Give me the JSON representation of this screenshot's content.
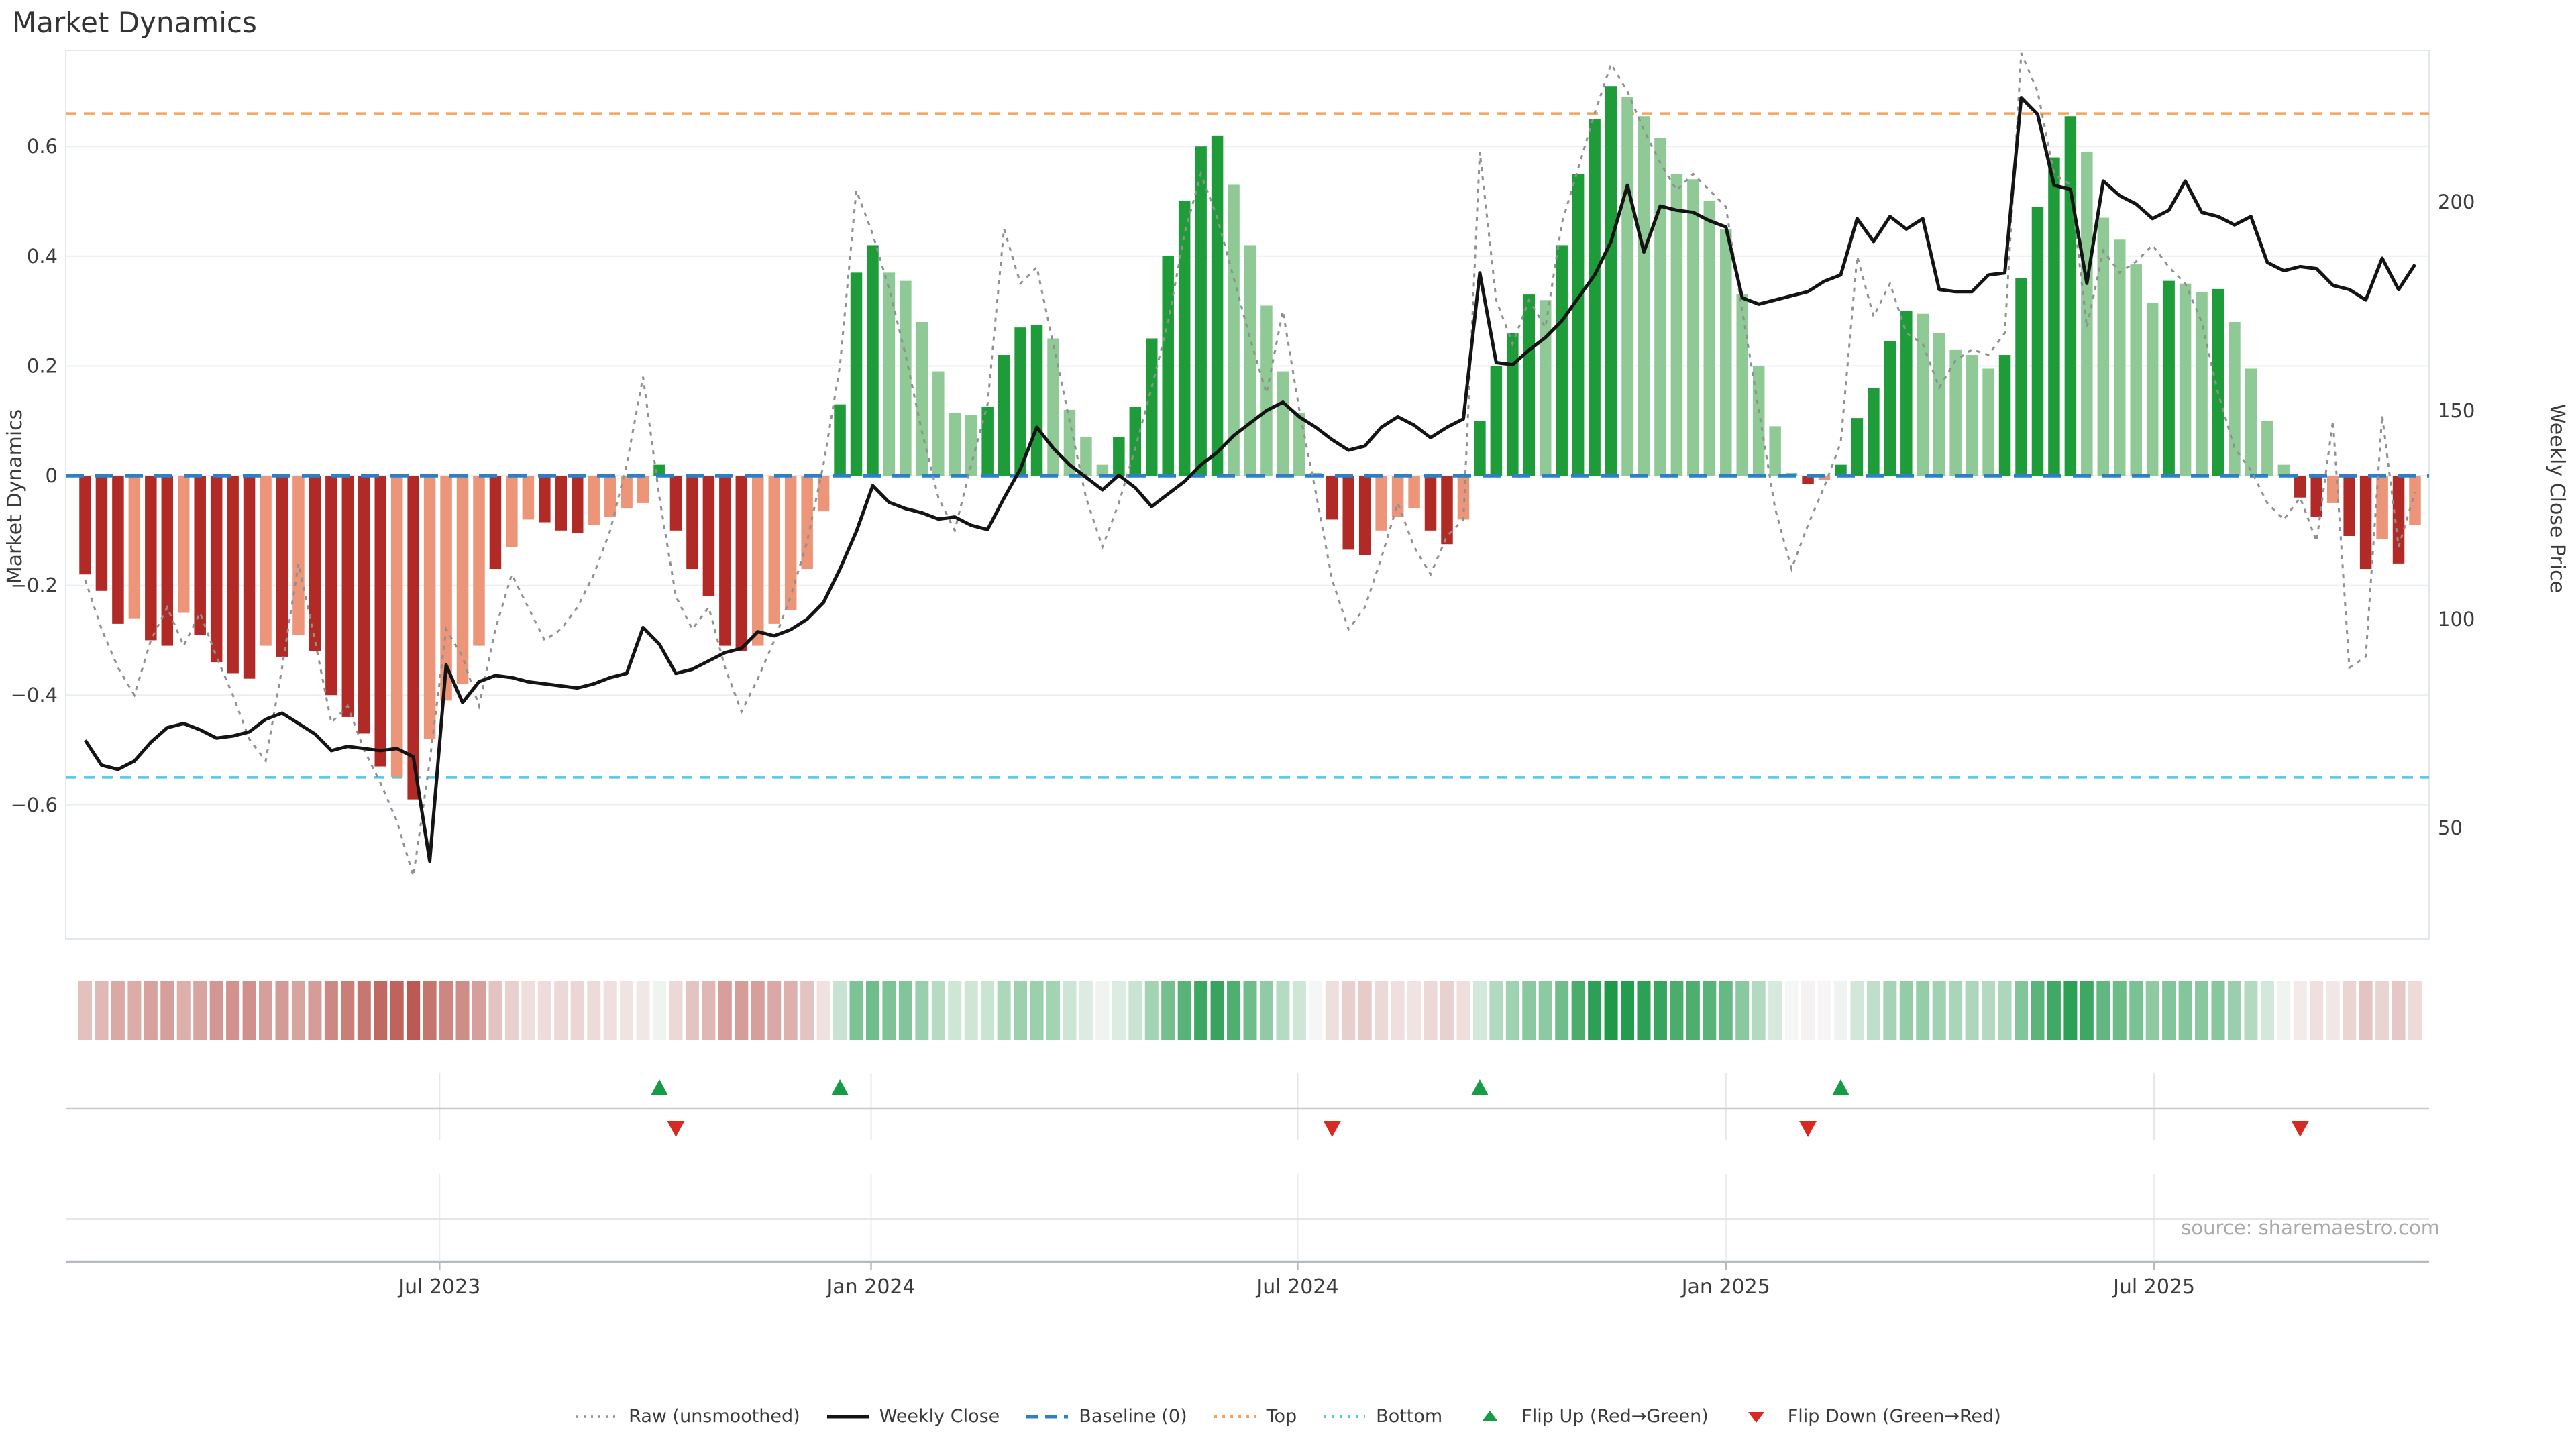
{
  "title": "Market Dynamics",
  "left_axis": {
    "label": "Market Dynamics",
    "ticks": [
      0.6,
      0.4,
      0.2,
      0,
      -0.2,
      -0.4,
      -0.6
    ]
  },
  "right_axis": {
    "label": "Weekly Close Price",
    "ticks": [
      200,
      150,
      100,
      50
    ]
  },
  "x_axis": {
    "tick_labels": [
      "Jul 2023",
      "Jan 2024",
      "Jul 2024",
      "Jan 2025",
      "Jul 2025"
    ],
    "tick_week_index": [
      21.6,
      47.9,
      73.9,
      100.0,
      126.1
    ]
  },
  "source": "source: sharemaestro.com",
  "colors": {
    "bar_pos_strong": "#1f9c3a",
    "bar_pos_weak": "#8fca96",
    "bar_neg_strong": "#b22a26",
    "bar_neg_weak": "#ec9579",
    "close": "#141414",
    "raw": "#909090",
    "baseline": "#2e80c6",
    "top": "#f2a45f",
    "bottom": "#54c6e8",
    "grid": "#e9eff5",
    "panel_grid": "#e6e6e6",
    "panel_mid": "#c9c9c9",
    "panel_mid2": "#e2e2e2",
    "axis_line": "#b5bac0",
    "flip_up": "#169b47",
    "flip_down": "#d62a22",
    "heat_pos": [
      26,
      152,
      70
    ],
    "heat_neg": [
      176,
      58,
      49
    ],
    "heat_white": [
      248,
      248,
      248
    ],
    "text": "#3b3b3b",
    "muted": "#a9a9a9",
    "title": "#333333"
  },
  "legend": [
    {
      "label": "Raw (unsmoothed)",
      "swatch": "raw"
    },
    {
      "label": "Weekly Close",
      "swatch": "close"
    },
    {
      "label": "Baseline (0)",
      "swatch": "baseline"
    },
    {
      "label": "Top",
      "swatch": "top"
    },
    {
      "label": "Bottom",
      "swatch": "bottom"
    },
    {
      "label": "Flip Up (Red→Green)",
      "swatch": "flip_up"
    },
    {
      "label": "Flip Down (Green→Red)",
      "swatch": "flip_down"
    }
  ],
  "chart_data": {
    "type": "bar",
    "title": "Market Dynamics",
    "xlabel": "",
    "ylabel_left": "Market Dynamics",
    "ylabel_right": "Weekly Close Price",
    "ylim_left": [
      -0.7,
      0.775
    ],
    "ylim_right": [
      40,
      235
    ],
    "grid": "horizontal-only",
    "legend_position": "lower center",
    "reference_lines": {
      "baseline": 0,
      "top": 0.66,
      "bottom": -0.55
    },
    "series": [
      {
        "name": "Market Dynamics (weekly bars)",
        "kind": "bar",
        "values": [
          -0.18,
          -0.21,
          -0.27,
          -0.26,
          -0.3,
          -0.31,
          -0.25,
          -0.29,
          -0.34,
          -0.36,
          -0.37,
          -0.31,
          -0.33,
          -0.29,
          -0.32,
          -0.4,
          -0.44,
          -0.47,
          -0.53,
          -0.55,
          -0.59,
          -0.48,
          -0.41,
          -0.38,
          -0.31,
          -0.17,
          -0.13,
          -0.08,
          -0.085,
          -0.1,
          -0.105,
          -0.09,
          -0.075,
          -0.06,
          -0.05,
          0.02,
          -0.1,
          -0.17,
          -0.22,
          -0.31,
          -0.32,
          -0.31,
          -0.27,
          -0.245,
          -0.17,
          -0.065,
          0.13,
          0.37,
          0.42,
          0.37,
          0.355,
          0.28,
          0.19,
          0.115,
          0.11,
          0.125,
          0.22,
          0.27,
          0.275,
          0.25,
          0.12,
          0.07,
          0.02,
          0.07,
          0.125,
          0.25,
          0.4,
          0.5,
          0.6,
          0.62,
          0.53,
          0.42,
          0.31,
          0.19,
          0.115,
          0.005,
          -0.08,
          -0.135,
          -0.145,
          -0.1,
          -0.075,
          -0.06,
          -0.1,
          -0.125,
          -0.08,
          0.1,
          0.2,
          0.26,
          0.33,
          0.32,
          0.42,
          0.55,
          0.65,
          0.71,
          0.69,
          0.655,
          0.615,
          0.55,
          0.54,
          0.5,
          0.45,
          0.33,
          0.2,
          0.09,
          0.005,
          -0.015,
          -0.008,
          0.02,
          0.105,
          0.16,
          0.245,
          0.3,
          0.295,
          0.26,
          0.23,
          0.22,
          0.195,
          0.22,
          0.36,
          0.49,
          0.58,
          0.655,
          0.59,
          0.47,
          0.43,
          0.385,
          0.315,
          0.355,
          0.35,
          0.335,
          0.34,
          0.28,
          0.195,
          0.1,
          0.02,
          -0.04,
          -0.075,
          -0.05,
          -0.11,
          -0.17,
          -0.115,
          -0.16,
          -0.09
        ],
        "strong": [
          1,
          1,
          1,
          0,
          1,
          1,
          0,
          1,
          1,
          1,
          1,
          0,
          1,
          0,
          1,
          1,
          1,
          1,
          1,
          0,
          1,
          0,
          0,
          0,
          0,
          1,
          0,
          0,
          1,
          1,
          1,
          0,
          0,
          0,
          0,
          1,
          1,
          1,
          1,
          1,
          1,
          0,
          0,
          0,
          0,
          0,
          1,
          1,
          1,
          0,
          0,
          0,
          0,
          0,
          0,
          1,
          1,
          1,
          1,
          0,
          0,
          0,
          0,
          1,
          1,
          1,
          1,
          1,
          1,
          1,
          0,
          0,
          0,
          0,
          0,
          0,
          1,
          1,
          1,
          0,
          0,
          0,
          1,
          1,
          0,
          1,
          1,
          1,
          1,
          0,
          1,
          1,
          1,
          1,
          0,
          0,
          0,
          0,
          0,
          0,
          0,
          0,
          0,
          0,
          0,
          1,
          0,
          1,
          1,
          1,
          1,
          1,
          0,
          0,
          0,
          0,
          0,
          1,
          1,
          1,
          1,
          1,
          0,
          0,
          0,
          0,
          0,
          1,
          0,
          0,
          1,
          0,
          0,
          0,
          0,
          1,
          1,
          0,
          1,
          1,
          0,
          1,
          0
        ]
      },
      {
        "name": "Weekly Close",
        "kind": "line",
        "axis": "right",
        "values": [
          71,
          65,
          64,
          66,
          70.5,
          74,
          75,
          73.5,
          71.5,
          72,
          73,
          76,
          77.5,
          75,
          72.5,
          68.5,
          69.5,
          69,
          68.5,
          69,
          67,
          42,
          89,
          80,
          85,
          86.5,
          86,
          85,
          84.5,
          84,
          83.5,
          84.5,
          86,
          87,
          98,
          94,
          87,
          88,
          90,
          92,
          93,
          97,
          96,
          97.5,
          100,
          104,
          112,
          121,
          132,
          128,
          126.5,
          125.5,
          124,
          124.5,
          122.5,
          121.5,
          129,
          136,
          146,
          141,
          137,
          134,
          131,
          134.5,
          131.5,
          127,
          130,
          133,
          137,
          140,
          144,
          147,
          150,
          152,
          148.5,
          146,
          143,
          140.5,
          141.5,
          146,
          148.5,
          146.5,
          143.5,
          146,
          148,
          183,
          161.5,
          161,
          164.5,
          167.5,
          171.5,
          177,
          182.5,
          190.5,
          204,
          188,
          199,
          198,
          197.5,
          195.5,
          194,
          177,
          175.5,
          176.5,
          177.5,
          178.5,
          181,
          182.5,
          196,
          190.5,
          196.5,
          193.5,
          196,
          179,
          178.5,
          178.5,
          182.5,
          183,
          225,
          221,
          204,
          203,
          180.5,
          205,
          201.5,
          199.5,
          196,
          198,
          205,
          197.5,
          196.5,
          194.5,
          196.5,
          185.5,
          183.5,
          184.5,
          184,
          180,
          179,
          176.5,
          186.5,
          179,
          185
        ]
      },
      {
        "name": "Raw (unsmoothed)",
        "kind": "line-dashed",
        "axis": "left",
        "values": [
          -0.19,
          -0.28,
          -0.35,
          -0.4,
          -0.3,
          -0.24,
          -0.31,
          -0.25,
          -0.33,
          -0.4,
          -0.48,
          -0.52,
          -0.35,
          -0.16,
          -0.3,
          -0.45,
          -0.42,
          -0.5,
          -0.56,
          -0.63,
          -0.73,
          -0.52,
          -0.28,
          -0.33,
          -0.42,
          -0.28,
          -0.18,
          -0.24,
          -0.3,
          -0.28,
          -0.24,
          -0.18,
          -0.1,
          0.02,
          0.18,
          -0.04,
          -0.22,
          -0.28,
          -0.24,
          -0.35,
          -0.43,
          -0.37,
          -0.3,
          -0.22,
          -0.12,
          0.02,
          0.2,
          0.52,
          0.44,
          0.34,
          0.22,
          0.08,
          -0.04,
          -0.1,
          0.02,
          0.13,
          0.45,
          0.35,
          0.38,
          0.24,
          0.1,
          -0.04,
          -0.13,
          -0.05,
          0.05,
          0.16,
          0.28,
          0.44,
          0.55,
          0.47,
          0.36,
          0.25,
          0.15,
          0.3,
          0.12,
          -0.03,
          -0.19,
          -0.28,
          -0.24,
          -0.15,
          -0.05,
          -0.13,
          -0.18,
          -0.11,
          -0.08,
          0.59,
          0.32,
          0.24,
          0.32,
          0.27,
          0.46,
          0.56,
          0.66,
          0.75,
          0.7,
          0.63,
          0.57,
          0.52,
          0.55,
          0.52,
          0.49,
          0.3,
          0.12,
          -0.06,
          -0.17,
          -0.09,
          -0.02,
          0.06,
          0.4,
          0.29,
          0.35,
          0.26,
          0.24,
          0.16,
          0.21,
          0.23,
          0.22,
          0.26,
          0.77,
          0.7,
          0.55,
          0.53,
          0.27,
          0.41,
          0.37,
          0.39,
          0.42,
          0.38,
          0.35,
          0.28,
          0.15,
          0.05,
          0.01,
          -0.05,
          -0.08,
          -0.04,
          -0.12,
          0.1,
          -0.35,
          -0.33,
          0.11,
          -0.13,
          -0.03
        ]
      }
    ],
    "flip_up_weeks": [
      35,
      46,
      85,
      107
    ],
    "flip_down_weeks": [
      36,
      76,
      105,
      135
    ],
    "heatmap": "mirror of bar values, red-to-green scale"
  }
}
